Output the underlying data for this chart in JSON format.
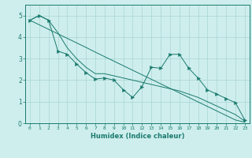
{
  "xlabel": "Humidex (Indice chaleur)",
  "xlim": [
    -0.5,
    23.5
  ],
  "ylim": [
    0,
    5.5
  ],
  "background_color": "#ceeeed",
  "plot_bg_color": "#ceeeed",
  "grid_color": "#a8d5d3",
  "line_color": "#1a7a6e",
  "trend_x": [
    0,
    1,
    2,
    3,
    4,
    5,
    6,
    7,
    8,
    9,
    10,
    11,
    12,
    13,
    14,
    15,
    16,
    17,
    18,
    19,
    20,
    21,
    22,
    23
  ],
  "trend_y": [
    4.78,
    4.57,
    4.36,
    4.15,
    3.94,
    3.73,
    3.52,
    3.3,
    3.09,
    2.88,
    2.67,
    2.46,
    2.25,
    2.04,
    1.83,
    1.62,
    1.41,
    1.2,
    0.99,
    0.78,
    0.57,
    0.36,
    0.15,
    0.05
  ],
  "line2_x": [
    0,
    1,
    2,
    3,
    4,
    5,
    6,
    7,
    8,
    9,
    10,
    11,
    12,
    13,
    14,
    15,
    16,
    17,
    18,
    19,
    20,
    21,
    22,
    23
  ],
  "line2_y": [
    4.78,
    5.0,
    4.78,
    4.2,
    3.5,
    3.0,
    2.6,
    2.3,
    2.3,
    2.2,
    2.1,
    2.0,
    1.9,
    1.8,
    1.7,
    1.6,
    1.5,
    1.35,
    1.2,
    1.0,
    0.8,
    0.6,
    0.4,
    0.1
  ],
  "jagged_x": [
    0,
    1,
    2,
    3,
    4,
    5,
    6,
    7,
    8,
    9,
    10,
    11,
    12,
    13,
    14,
    15,
    16,
    17,
    18,
    19,
    20,
    21,
    22,
    23
  ],
  "jagged_y": [
    4.78,
    5.0,
    4.78,
    3.35,
    3.2,
    2.75,
    2.35,
    2.05,
    2.1,
    2.0,
    1.55,
    1.2,
    1.7,
    2.6,
    2.55,
    3.2,
    3.2,
    2.55,
    2.1,
    1.55,
    1.35,
    1.15,
    0.95,
    0.15
  ],
  "yticks": [
    0,
    1,
    2,
    3,
    4,
    5
  ],
  "xticks": [
    0,
    1,
    2,
    3,
    4,
    5,
    6,
    7,
    8,
    9,
    10,
    11,
    12,
    13,
    14,
    15,
    16,
    17,
    18,
    19,
    20,
    21,
    22,
    23
  ],
  "markersize": 3
}
